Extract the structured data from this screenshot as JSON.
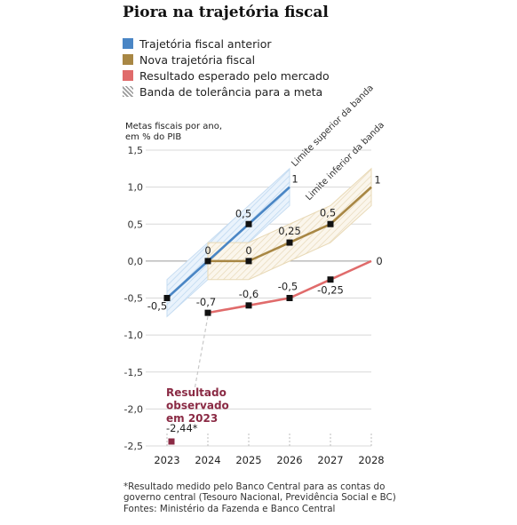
{
  "title": "Piora na trajetória fiscal",
  "legend": [
    {
      "label": "Trajetória fiscal anterior",
      "color": "#4a86c5",
      "kind": "solid"
    },
    {
      "label": "Nova trajetória fiscal",
      "color": "#a88744",
      "kind": "solid"
    },
    {
      "label": "Resultado esperado pelo mercado",
      "color": "#e06b6b",
      "kind": "solid"
    },
    {
      "label": "Banda de tolerância para a meta",
      "color": "#9a9a9a",
      "kind": "hatch"
    }
  ],
  "y_title_line1": "Metas fiscais por ano,",
  "y_title_line2": "em % do PIB",
  "footnote": [
    "*Resultado medido pelo Banco Central para as contas do",
    "governo central (Tesouro Nacional, Previdência Social e BC)",
    "Fontes: Ministério da Fazenda e Banco Central"
  ],
  "chart_data": {
    "type": "line",
    "x_ticks": [
      "2023",
      "2024",
      "2025",
      "2026",
      "2027",
      "2028"
    ],
    "y_ticks": [
      "1,5",
      "1,0",
      "0,5",
      "0,0",
      "-0,5",
      "-1,0",
      "-1,5",
      "-2,0",
      "-2,5"
    ],
    "ylim": [
      -2.5,
      1.5
    ],
    "xlim": [
      2023,
      2028
    ],
    "grid": true,
    "series": [
      {
        "name": "Trajetória fiscal anterior",
        "color": "#4a86c5",
        "points": [
          {
            "x": 2023,
            "y": -0.5,
            "label": "-0,5",
            "marker": true
          },
          {
            "x": 2024,
            "y": 0.0,
            "label": "0",
            "marker": true
          },
          {
            "x": 2025,
            "y": 0.5,
            "label": "0,5",
            "marker": true
          },
          {
            "x": 2026,
            "y": 1.0,
            "label": "1",
            "marker": false
          }
        ],
        "band": {
          "lower": [
            -0.75,
            -0.25,
            0.25,
            0.75
          ],
          "upper": [
            -0.25,
            0.25,
            0.75,
            1.25
          ]
        }
      },
      {
        "name": "Nova trajetória fiscal",
        "color": "#a88744",
        "points": [
          {
            "x": 2024,
            "y": 0.0,
            "label": "",
            "marker": false
          },
          {
            "x": 2025,
            "y": 0.0,
            "label": "0",
            "marker": true
          },
          {
            "x": 2026,
            "y": 0.25,
            "label": "0,25",
            "marker": true
          },
          {
            "x": 2027,
            "y": 0.5,
            "label": "0,5",
            "marker": true
          },
          {
            "x": 2028,
            "y": 1.0,
            "label": "1",
            "marker": false
          }
        ],
        "band": {
          "lower": [
            -0.25,
            -0.25,
            0.0,
            0.25,
            0.75
          ],
          "upper": [
            0.25,
            0.25,
            0.5,
            0.75,
            1.25
          ]
        }
      },
      {
        "name": "Resultado esperado pelo mercado",
        "color": "#e06b6b",
        "points": [
          {
            "x": 2024,
            "y": -0.7,
            "label": "-0,7",
            "marker": true
          },
          {
            "x": 2025,
            "y": -0.6,
            "label": "-0,6",
            "marker": true
          },
          {
            "x": 2026,
            "y": -0.5,
            "label": "-0,5",
            "marker": true
          },
          {
            "x": 2027,
            "y": -0.25,
            "label": "-0,25",
            "marker": true
          },
          {
            "x": 2028,
            "y": 0.0,
            "label": "0",
            "marker": false
          }
        ]
      }
    ],
    "observed": {
      "x": 2023,
      "y": -2.44,
      "label": "-2,44*",
      "color": "#8a2a44",
      "annotation": [
        "Resultado",
        "observado",
        "em 2023"
      ]
    },
    "band_labels": {
      "upper": "Limite superior da banda",
      "lower": "Limite inferior da banda"
    }
  }
}
